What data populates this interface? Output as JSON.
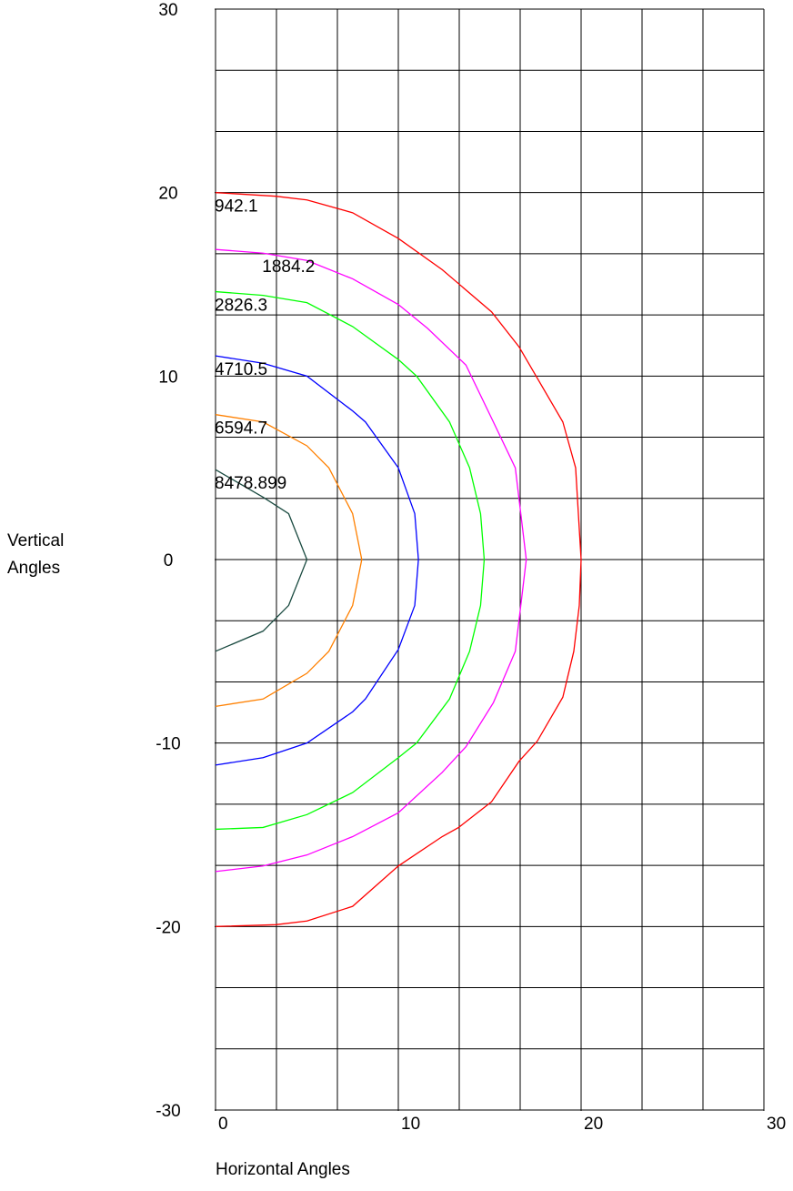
{
  "chart_data": {
    "type": "line",
    "xlabel": "Horizontal Angles",
    "ylabel": "Vertical Angles",
    "xlim": [
      0,
      30
    ],
    "ylim": [
      -30,
      30
    ],
    "xticks": [
      0,
      10,
      20,
      30
    ],
    "yticks": [
      -30,
      -20,
      -10,
      0,
      10,
      20,
      30
    ],
    "grid": true,
    "grid_divisions": {
      "x": 9,
      "y": 18
    },
    "series": [
      {
        "name": "942.1",
        "color": "#ff0000",
        "x": [
          0,
          3.3,
          5.0,
          7.5,
          10.0,
          12.4,
          15.1,
          16.6,
          19.0,
          19.7,
          20.0,
          19.9,
          19.6,
          19.0,
          17.6,
          16.6,
          15.1,
          13.3,
          12.4,
          10.0,
          7.5,
          5.0,
          3.3,
          0
        ],
        "values": [
          20.0,
          19.8,
          19.6,
          18.9,
          17.5,
          15.8,
          13.5,
          11.6,
          7.5,
          5.0,
          0,
          -2.5,
          -5.0,
          -7.5,
          -9.9,
          -11.0,
          -13.2,
          -14.6,
          -15.1,
          -16.7,
          -18.9,
          -19.7,
          -19.9,
          -20.0
        ]
      },
      {
        "name": "1884.2",
        "color": "#ff00ff",
        "x": [
          0,
          2.6,
          5.0,
          7.5,
          10.0,
          11.6,
          13.7,
          15.2,
          16.4,
          16.7,
          17.0,
          16.7,
          16.4,
          15.2,
          13.7,
          12.4,
          10.0,
          7.5,
          5.0,
          2.6,
          0
        ],
        "values": [
          16.9,
          16.7,
          16.3,
          15.3,
          13.9,
          12.6,
          10.6,
          7.5,
          5.0,
          2.5,
          0,
          -2.5,
          -5.0,
          -7.8,
          -10.2,
          -11.6,
          -13.8,
          -15.1,
          -16.1,
          -16.7,
          -17.0
        ]
      },
      {
        "name": "2826.3",
        "color": "#00ff00",
        "x": [
          0,
          2.6,
          5.0,
          7.5,
          10.0,
          11.0,
          12.8,
          13.9,
          14.5,
          14.7,
          14.5,
          13.9,
          12.8,
          11.0,
          10.0,
          7.5,
          5.0,
          2.6,
          0
        ],
        "values": [
          14.6,
          14.4,
          14.0,
          12.7,
          10.9,
          10.0,
          7.5,
          5.0,
          2.5,
          0,
          -2.5,
          -5.0,
          -7.6,
          -10.0,
          -10.8,
          -12.7,
          -13.9,
          -14.6,
          -14.7
        ]
      },
      {
        "name": "4710.5",
        "color": "#0000ff",
        "x": [
          0,
          2.6,
          5.0,
          7.5,
          8.2,
          10.0,
          10.9,
          11.1,
          10.9,
          10.0,
          8.2,
          7.5,
          5.0,
          2.6,
          0
        ],
        "values": [
          11.1,
          10.7,
          10.0,
          8.1,
          7.5,
          5.0,
          2.5,
          0,
          -2.5,
          -4.9,
          -7.6,
          -8.3,
          -10.0,
          -10.8,
          -11.2
        ]
      },
      {
        "name": "6594.7",
        "color": "#ff8000",
        "x": [
          0,
          2.6,
          5.0,
          6.2,
          7.5,
          8.0,
          7.5,
          6.2,
          5.0,
          2.6,
          0
        ],
        "values": [
          7.9,
          7.5,
          6.2,
          5.0,
          2.5,
          0,
          -2.5,
          -5.0,
          -6.2,
          -7.6,
          -8.0
        ]
      },
      {
        "name": "8478.899",
        "color": "#1a4a40",
        "x": [
          0,
          2.6,
          4.0,
          5.0,
          4.0,
          2.6,
          0
        ],
        "values": [
          4.9,
          3.4,
          2.5,
          0,
          -2.5,
          -3.9,
          -5.0
        ]
      }
    ]
  }
}
